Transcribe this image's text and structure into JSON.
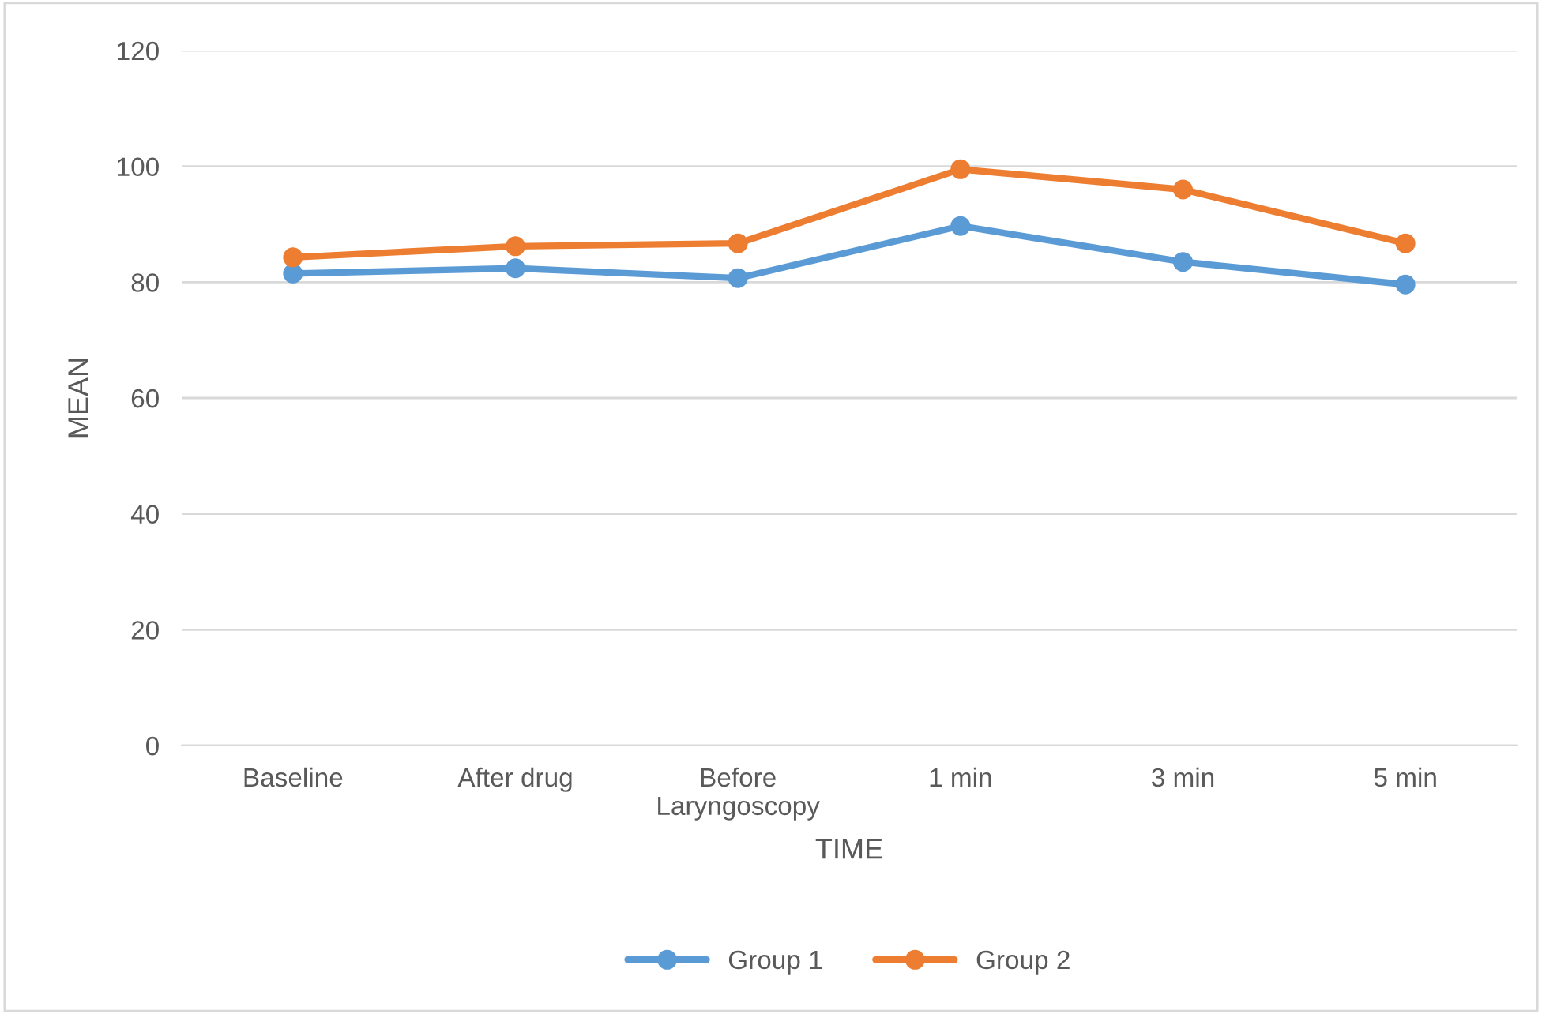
{
  "chart_data": {
    "type": "line",
    "xlabel": "TIME",
    "ylabel": "MEAN",
    "categories": [
      "Baseline",
      "After drug",
      "Before Laryngoscopy",
      "1 min",
      "3 min",
      "5 min"
    ],
    "series": [
      {
        "name": "Group 1",
        "color": "#5b9bd5",
        "values": [
          81.5,
          82.4,
          80.7,
          89.7,
          83.5,
          79.6
        ]
      },
      {
        "name": "Group 2",
        "color": "#ed7d31",
        "values": [
          84.3,
          86.2,
          86.7,
          99.5,
          96.0,
          86.7
        ]
      }
    ],
    "ylim": [
      0,
      120
    ],
    "yticks": [
      0,
      20,
      40,
      60,
      80,
      100,
      120
    ],
    "grid": "y",
    "legend": "bottom",
    "marker": "circle",
    "line_style": "solid"
  }
}
